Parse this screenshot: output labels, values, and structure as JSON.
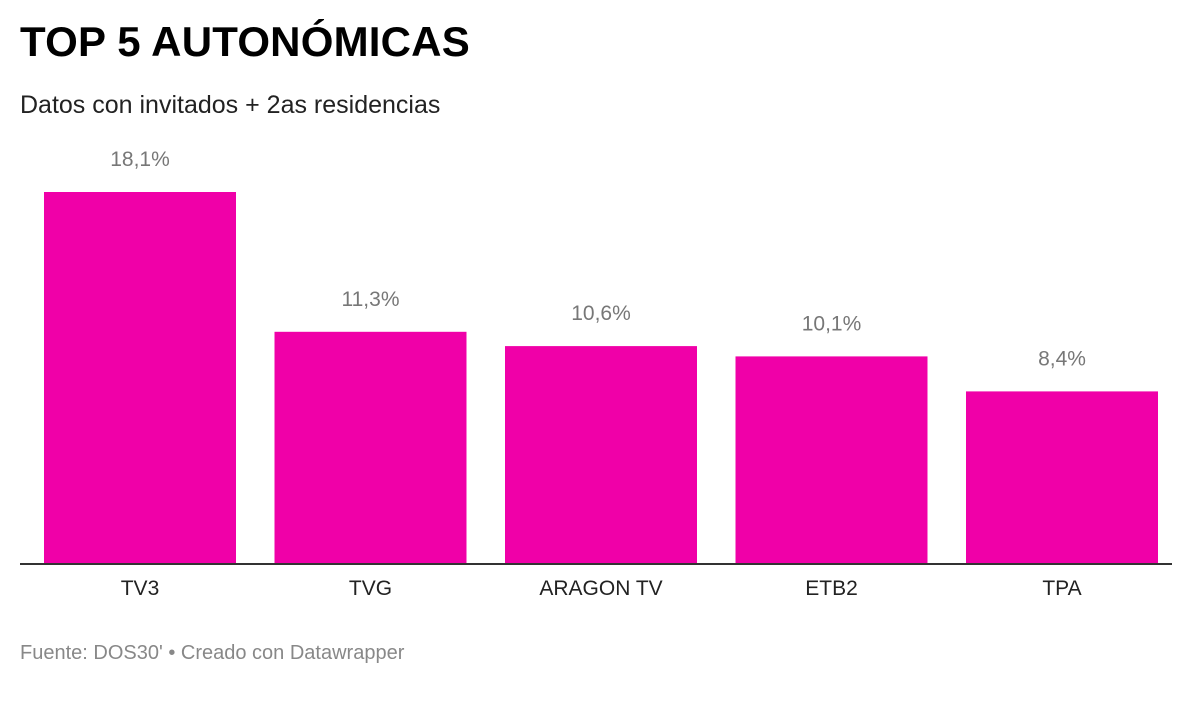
{
  "header": {
    "title": "TOP 5 AUTONÓMICAS",
    "subtitle": "Datos con invitados + 2as residencias"
  },
  "footer": {
    "text": "Fuente: DOS30' • Creado con Datawrapper"
  },
  "colors": {
    "bar": "#f000a8",
    "value_label": "#777777",
    "category_label": "#222222",
    "baseline": "#333333"
  },
  "chart_data": {
    "type": "bar",
    "categories": [
      "TV3",
      "TVG",
      "ARAGON TV",
      "ETB2",
      "TPA"
    ],
    "values": [
      18.1,
      11.3,
      10.6,
      10.1,
      8.4
    ],
    "value_labels": [
      "18,1%",
      "11,3%",
      "10,6%",
      "10,1%",
      "8,4%"
    ],
    "title": "TOP 5 AUTONÓMICAS",
    "subtitle": "Datos con invitados + 2as residencias",
    "ylim": [
      0,
      18.1
    ],
    "grid": false,
    "legend": "none"
  }
}
